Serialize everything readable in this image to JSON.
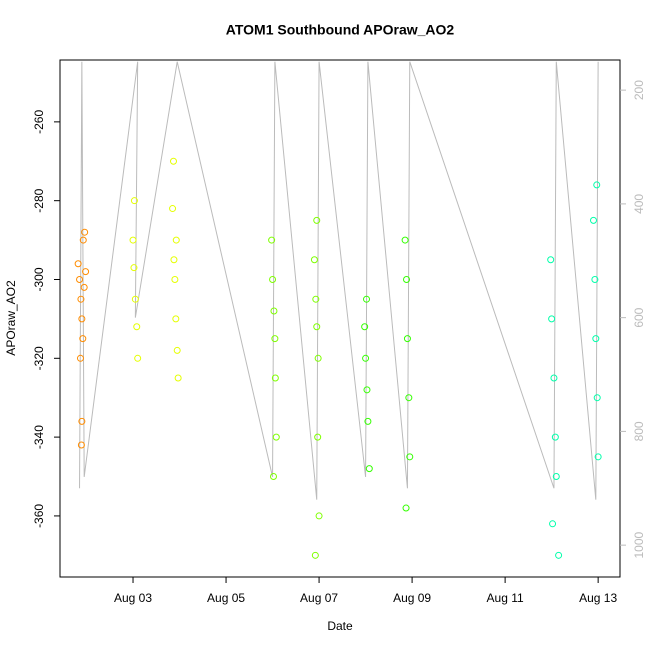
{
  "chart_data": {
    "type": "scatter",
    "title": "ATOM1 Southbound APOraw_AO2",
    "xlabel": "Date",
    "ylabel": "APOraw_AO2",
    "xlim": [
      1.43,
      13.47
    ],
    "xticks": [
      {
        "value": 3,
        "label": "Aug 03"
      },
      {
        "value": 5,
        "label": "Aug 05"
      },
      {
        "value": 7,
        "label": "Aug 07"
      },
      {
        "value": 9,
        "label": "Aug 09"
      },
      {
        "value": 11,
        "label": "Aug 11"
      },
      {
        "value": 13,
        "label": "Aug 13"
      }
    ],
    "ylim": [
      -375.5,
      -244.3
    ],
    "yticks": [
      -360,
      -340,
      -320,
      -300,
      -280,
      -260
    ],
    "y2lim": [
      1056,
      147
    ],
    "y2ticks": [
      200,
      400,
      600,
      800,
      1000
    ],
    "series": [
      {
        "color": "#FF8C00",
        "x": [
          1.82,
          1.85,
          1.88,
          1.9,
          1.92,
          1.95,
          1.98,
          1.87,
          1.93,
          1.9,
          1.89,
          1.96
        ],
        "values": [
          -296,
          -300,
          -305,
          -310,
          -315,
          -302,
          -298,
          -320,
          -290,
          -336,
          -342,
          -288
        ]
      },
      {
        "color": "#E5FF00",
        "x": [
          3.0,
          3.02,
          3.05,
          3.08,
          3.1,
          3.03,
          3.85,
          3.88,
          3.9,
          3.92,
          3.95,
          3.97,
          3.87,
          3.93
        ],
        "values": [
          -290,
          -297,
          -305,
          -312,
          -320,
          -280,
          -282,
          -295,
          -300,
          -310,
          -318,
          -325,
          -270,
          -290
        ]
      },
      {
        "color": "#7FFF00",
        "x": [
          5.98,
          6.0,
          6.03,
          6.05,
          6.08,
          6.02,
          6.06,
          6.9,
          6.93,
          6.95,
          6.98,
          7.0,
          6.92,
          6.97,
          6.95
        ],
        "values": [
          -290,
          -300,
          -308,
          -315,
          -340,
          -350,
          -325,
          -295,
          -305,
          -312,
          -320,
          -360,
          -370,
          -340,
          -285
        ]
      },
      {
        "color": "#33FF00",
        "x": [
          7.98,
          8.0,
          8.03,
          8.05,
          8.08,
          8.02,
          8.85,
          8.88,
          8.9,
          8.93,
          8.95,
          8.87
        ],
        "values": [
          -312,
          -320,
          -328,
          -336,
          -348,
          -305,
          -290,
          -300,
          -315,
          -330,
          -345,
          -358
        ]
      },
      {
        "color": "#00FFAA",
        "x": [
          11.98,
          12.0,
          12.05,
          12.08,
          12.1,
          12.02,
          12.15,
          12.9,
          12.93,
          12.95,
          12.98,
          13.0,
          12.97
        ],
        "values": [
          -295,
          -310,
          -325,
          -340,
          -350,
          -362,
          -370,
          -285,
          -300,
          -315,
          -330,
          -345,
          -276
        ]
      },
      {
        "type": "line",
        "axis": "y2",
        "color": "#BBBBBB",
        "x": [
          1.85,
          1.9,
          1.95,
          3.1,
          3.05,
          3.95,
          6.0,
          6.05,
          6.95,
          7.0,
          8.0,
          8.05,
          8.9,
          8.95,
          12.05,
          12.1,
          12.95,
          13.0
        ],
        "values": [
          900,
          150,
          880,
          150,
          600,
          150,
          880,
          150,
          920,
          150,
          880,
          150,
          900,
          150,
          900,
          150,
          920,
          150
        ]
      }
    ]
  }
}
